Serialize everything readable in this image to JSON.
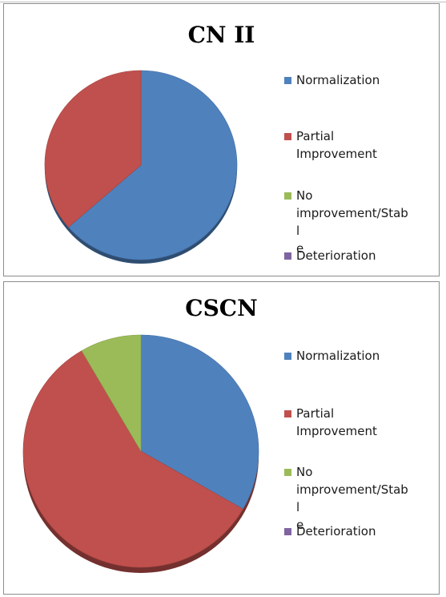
{
  "chart_data": [
    {
      "type": "pie",
      "title": "CN II",
      "categories": [
        "Normalization",
        "Partial Improvement",
        "No improvement/Stable",
        "Deterioration"
      ],
      "values": [
        63.6,
        36.4,
        0,
        0
      ],
      "colors": [
        "#4f81bd",
        "#c0504d",
        "#9bbb59",
        "#8064a2"
      ],
      "legend_position": "right"
    },
    {
      "type": "pie",
      "title": "CSCN",
      "categories": [
        "Normalization",
        "Partial Improvement",
        "No improvement/Stable",
        "Deterioration"
      ],
      "values": [
        33.3,
        58.3,
        8.4,
        0
      ],
      "colors": [
        "#4f81bd",
        "#c0504d",
        "#9bbb59",
        "#8064a2"
      ],
      "legend_position": "right"
    }
  ],
  "legend_display": [
    "Normalization",
    "Partial\nImprovement",
    "No\nimprovement/Stabl\ne",
    "Deterioration"
  ]
}
